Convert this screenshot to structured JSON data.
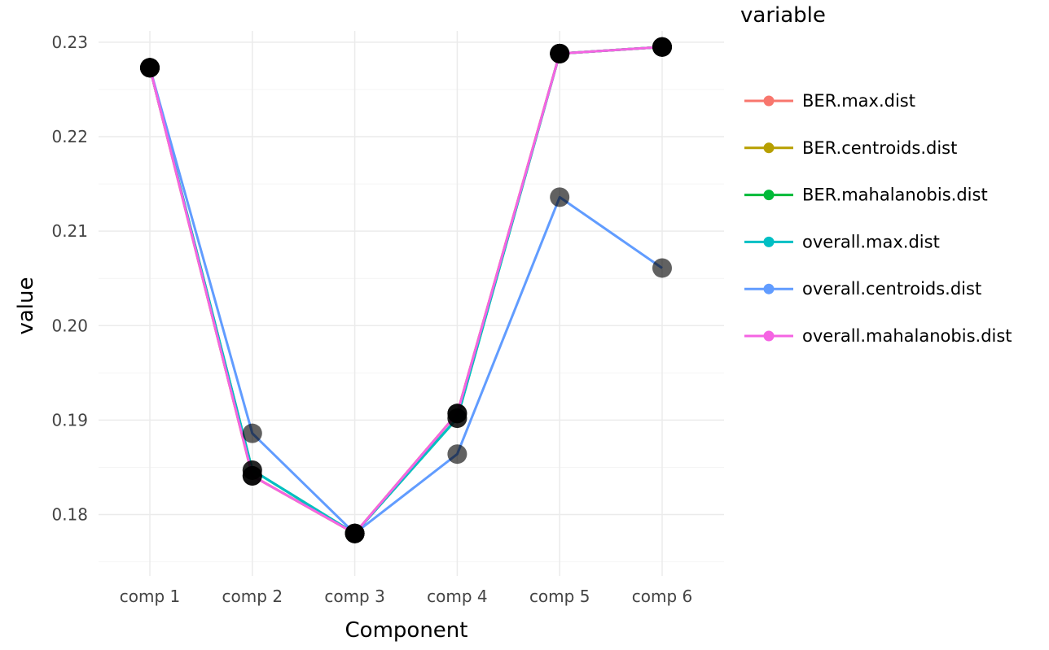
{
  "chart_data": {
    "type": "line",
    "categories": [
      "comp 1",
      "comp 2",
      "comp 3",
      "comp 4",
      "comp 5",
      "comp 6"
    ],
    "xlabel": "Component",
    "ylabel": "value",
    "ylim": [
      0.1735,
      0.2312
    ],
    "yticks": [
      0.18,
      0.19,
      0.2,
      0.21,
      0.22,
      0.23
    ],
    "ytick_labels": [
      "0.18",
      "0.19",
      "0.20",
      "0.21",
      "0.22",
      "0.23"
    ],
    "grid": true,
    "legend_title": "variable",
    "legend_position": "right",
    "point_color": "#000000",
    "series": [
      {
        "name": "BER.max.dist",
        "color": "#F8766D",
        "values": [
          0.2273,
          0.1841,
          0.178,
          0.1907,
          0.2288,
          0.2295
        ]
      },
      {
        "name": "BER.centroids.dist",
        "color": "#B79F00",
        "values": [
          0.2273,
          0.1841,
          0.178,
          0.1907,
          0.2288,
          0.2295
        ]
      },
      {
        "name": "BER.mahalanobis.dist",
        "color": "#00BA38",
        "values": [
          0.2273,
          0.1847,
          0.178,
          0.1902,
          0.2288,
          0.2295
        ]
      },
      {
        "name": "overall.max.dist",
        "color": "#00BFC4",
        "values": [
          0.2273,
          0.1847,
          0.178,
          0.1902,
          0.2288,
          0.2295
        ]
      },
      {
        "name": "overall.centroids.dist",
        "color": "#619CFF",
        "values": [
          0.2273,
          0.1886,
          0.178,
          0.1864,
          0.2136,
          0.2061
        ]
      },
      {
        "name": "overall.mahalanobis.dist",
        "color": "#F564E3",
        "values": [
          0.2273,
          0.1841,
          0.178,
          0.1907,
          0.2288,
          0.2295
        ]
      }
    ]
  }
}
